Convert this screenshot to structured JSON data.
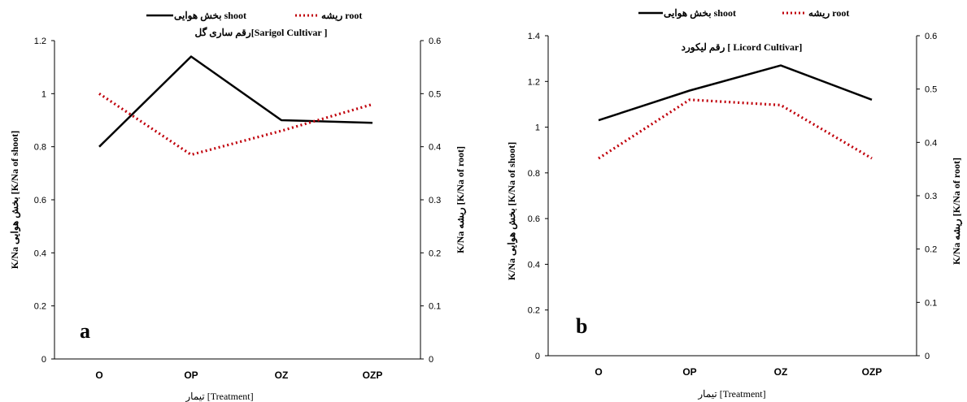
{
  "figure": {
    "panels": [
      {
        "panel_label": "a",
        "title": "رقم ساری گل[Sarigol Cultivar ]",
        "legend": {
          "shoot": "بخش هوایی shoot",
          "root": "ریشه root"
        },
        "y_left_label": "K/Na بخش هوایی [K/Na of shoot]",
        "y_right_label": "K/Na ریشه [K/Na of root]",
        "x_label": "تیمار [Treatment]"
      },
      {
        "panel_label": "b",
        "title": "رقم لیکورد [ Licord Cultivar]",
        "legend": {
          "shoot": "بخش هوایی shoot",
          "root": "ریشه root"
        },
        "y_left_label": "K/Na بخش هوایی [K/Na of shoot]",
        "y_right_label": "K/Na ریشه [K/Na of root]",
        "x_label": "تیمار [Treatment]"
      }
    ]
  },
  "chart_data": [
    {
      "type": "line",
      "title": "رقم ساری گل[Sarigol Cultivar ]",
      "categories": [
        "O",
        "OP",
        "OZ",
        "OZP"
      ],
      "series": [
        {
          "name": "بخش هوایی shoot",
          "axis": "left",
          "style": "solid",
          "color": "#000000",
          "values": [
            0.8,
            1.14,
            0.9,
            0.89
          ]
        },
        {
          "name": "ریشه root",
          "axis": "right",
          "style": "dotted",
          "color": "#c0000b",
          "values": [
            0.5,
            0.385,
            0.43,
            0.48
          ]
        }
      ],
      "y_left": {
        "label": "K/Na بخش هوایی [K/Na of shoot]",
        "lim": [
          0,
          1.2
        ],
        "ticks": [
          0,
          0.2,
          0.4,
          0.6,
          0.8,
          1,
          1.2
        ]
      },
      "y_right": {
        "label": "K/Na ریشه [K/Na of root]",
        "lim": [
          0,
          0.6
        ],
        "ticks": [
          0,
          0.1,
          0.2,
          0.3,
          0.4,
          0.5,
          0.6
        ]
      },
      "xlabel": "تیمار [Treatment]",
      "grid": false,
      "legend_position": "top-center",
      "panel_label": "a"
    },
    {
      "type": "line",
      "title": "رقم لیکورد [ Licord Cultivar]",
      "categories": [
        "O",
        "OP",
        "OZ",
        "OZP"
      ],
      "series": [
        {
          "name": "بخش هوایی shoot",
          "axis": "left",
          "style": "solid",
          "color": "#000000",
          "values": [
            1.03,
            1.16,
            1.27,
            1.12
          ]
        },
        {
          "name": "ریشه root",
          "axis": "right",
          "style": "dotted",
          "color": "#c0000b",
          "values": [
            0.37,
            0.48,
            0.47,
            0.37
          ]
        }
      ],
      "y_left": {
        "label": "K/Na بخش هوایی [K/Na of shoot]",
        "lim": [
          0,
          1.4
        ],
        "ticks": [
          0,
          0.2,
          0.4,
          0.6,
          0.8,
          1,
          1.2,
          1.4
        ]
      },
      "y_right": {
        "label": "K/Na ریشه [K/Na of root]",
        "lim": [
          0,
          0.6
        ],
        "ticks": [
          0,
          0.1,
          0.2,
          0.3,
          0.4,
          0.5,
          0.6
        ]
      },
      "xlabel": "تیمار [Treatment]",
      "grid": false,
      "legend_position": "top-center",
      "panel_label": "b"
    }
  ]
}
